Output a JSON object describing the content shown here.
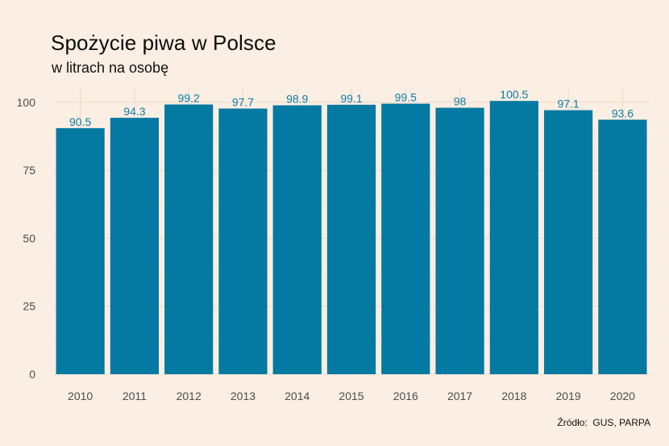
{
  "title": "Spożycie piwa w Polsce",
  "subtitle": "w litrach na osobę",
  "source": "Źródło:  GUS, PARPA",
  "colors": {
    "background": "#fbeee2",
    "bar": "#0479a1",
    "data_label": "#0f7ea8",
    "grid": "#eddccf",
    "tick_text": "#4d4d4d"
  },
  "chart_data": {
    "type": "bar",
    "title": "Spożycie piwa w Polsce",
    "subtitle": "w litrach na osobę",
    "xlabel": "",
    "ylabel": "",
    "categories": [
      "2010",
      "2011",
      "2012",
      "2013",
      "2014",
      "2015",
      "2016",
      "2017",
      "2018",
      "2019",
      "2020"
    ],
    "values": [
      90.5,
      94.3,
      99.2,
      97.7,
      98.9,
      99.1,
      99.5,
      98,
      100.5,
      97.1,
      93.6
    ],
    "data_labels": [
      "90.5",
      "94.3",
      "99.2",
      "97.7",
      "98.9",
      "99.1",
      "99.5",
      "98",
      "100.5",
      "97.1",
      "93.6"
    ],
    "ylim": [
      0,
      105
    ],
    "yticks": [
      0,
      25,
      50,
      75,
      100
    ],
    "ytick_labels": [
      "0",
      "25",
      "50",
      "75",
      "100"
    ],
    "grid": true,
    "legend": "none"
  }
}
